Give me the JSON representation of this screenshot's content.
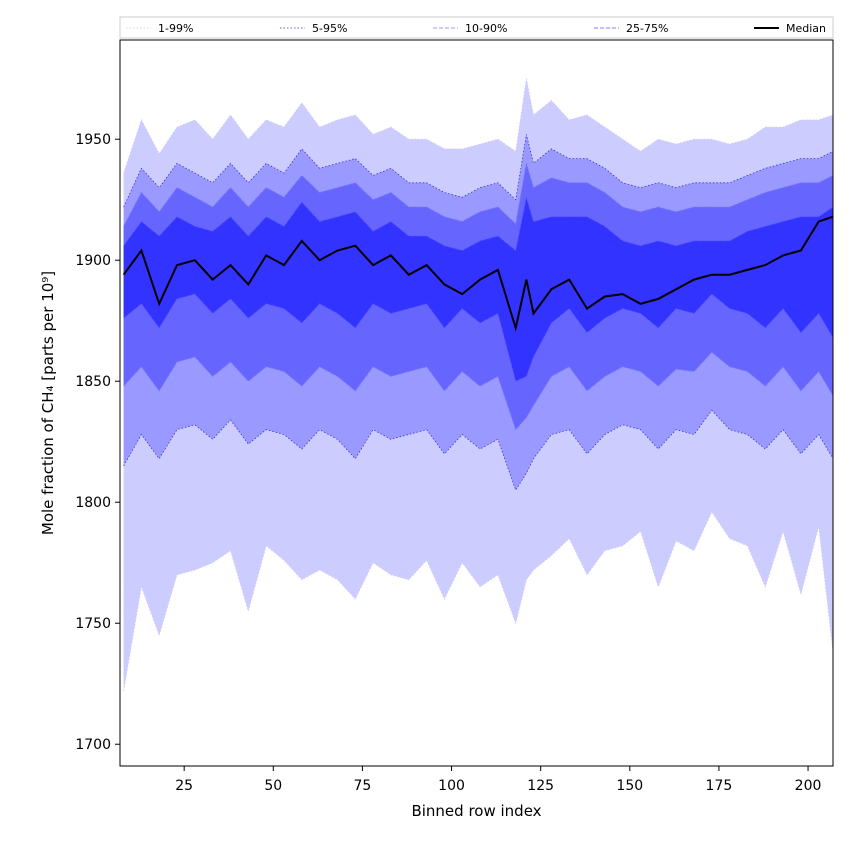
{
  "chart_data": {
    "type": "area",
    "title": "",
    "xlabel": "Binned row index",
    "ylabel": "Mole fraction of CH₄ [parts per 10⁹]",
    "xlim": [
      7,
      207
    ],
    "ylim": [
      1691,
      1991
    ],
    "x_ticks": [
      25,
      50,
      75,
      100,
      125,
      150,
      175,
      200
    ],
    "y_ticks": [
      1700,
      1750,
      1800,
      1850,
      1900,
      1950
    ],
    "grid": false,
    "legend_position": "top, spanning full width above plot",
    "x": [
      8,
      13,
      18,
      23,
      28,
      33,
      38,
      43,
      48,
      53,
      58,
      63,
      68,
      73,
      78,
      83,
      88,
      93,
      98,
      103,
      108,
      113,
      118,
      121,
      123,
      128,
      133,
      138,
      143,
      148,
      153,
      158,
      163,
      168,
      173,
      178,
      183,
      188,
      193,
      198,
      203,
      207
    ],
    "bands": [
      {
        "name": "1-99%",
        "fill": "#ccccff",
        "line_color": "#c8c8ff",
        "line_style": "dotted",
        "lower": [
          1722,
          1765,
          1745,
          1770,
          1772,
          1775,
          1780,
          1755,
          1782,
          1776,
          1768,
          1772,
          1768,
          1760,
          1775,
          1770,
          1768,
          1776,
          1760,
          1775,
          1765,
          1770,
          1750,
          1768,
          1772,
          1778,
          1785,
          1770,
          1780,
          1782,
          1788,
          1765,
          1784,
          1780,
          1796,
          1785,
          1782,
          1765,
          1788,
          1762,
          1790,
          1738
        ],
        "upper": [
          1936,
          1958,
          1944,
          1955,
          1958,
          1950,
          1960,
          1950,
          1958,
          1955,
          1965,
          1955,
          1958,
          1960,
          1952,
          1955,
          1950,
          1950,
          1946,
          1946,
          1948,
          1950,
          1945,
          1975,
          1960,
          1966,
          1958,
          1960,
          1955,
          1950,
          1945,
          1950,
          1948,
          1950,
          1950,
          1948,
          1950,
          1955,
          1955,
          1958,
          1958,
          1960
        ]
      },
      {
        "name": "5-95%",
        "fill": "#9999ff",
        "line_color": "#3333cc",
        "line_style": "dotted",
        "lower": [
          1815,
          1828,
          1818,
          1830,
          1832,
          1826,
          1834,
          1824,
          1830,
          1828,
          1822,
          1830,
          1826,
          1818,
          1830,
          1826,
          1828,
          1830,
          1820,
          1828,
          1822,
          1826,
          1805,
          1812,
          1818,
          1828,
          1830,
          1820,
          1828,
          1832,
          1830,
          1822,
          1830,
          1828,
          1838,
          1830,
          1828,
          1822,
          1830,
          1820,
          1828,
          1818
        ],
        "upper": [
          1922,
          1938,
          1930,
          1940,
          1936,
          1932,
          1940,
          1932,
          1940,
          1936,
          1946,
          1938,
          1940,
          1942,
          1935,
          1938,
          1932,
          1932,
          1928,
          1926,
          1930,
          1932,
          1925,
          1952,
          1940,
          1946,
          1942,
          1942,
          1938,
          1932,
          1930,
          1932,
          1930,
          1932,
          1932,
          1932,
          1935,
          1938,
          1940,
          1942,
          1942,
          1945
        ]
      },
      {
        "name": "10-90%",
        "fill": "#6666ff",
        "line_color": "#7777ff",
        "line_style": "dashed",
        "lower": [
          1848,
          1856,
          1846,
          1858,
          1860,
          1852,
          1858,
          1850,
          1856,
          1854,
          1848,
          1856,
          1852,
          1846,
          1856,
          1852,
          1854,
          1856,
          1846,
          1854,
          1848,
          1852,
          1830,
          1835,
          1840,
          1852,
          1856,
          1846,
          1852,
          1856,
          1854,
          1848,
          1855,
          1854,
          1862,
          1856,
          1854,
          1848,
          1856,
          1846,
          1854,
          1844
        ],
        "upper": [
          1914,
          1928,
          1920,
          1930,
          1926,
          1922,
          1930,
          1922,
          1930,
          1926,
          1935,
          1928,
          1930,
          1932,
          1925,
          1928,
          1922,
          1922,
          1918,
          1916,
          1920,
          1922,
          1915,
          1940,
          1930,
          1934,
          1932,
          1932,
          1928,
          1922,
          1920,
          1922,
          1920,
          1922,
          1922,
          1922,
          1925,
          1928,
          1930,
          1932,
          1932,
          1935
        ]
      },
      {
        "name": "25-75%",
        "fill": "#3333ff",
        "line_color": "#5555ff",
        "line_style": "dashed",
        "lower": [
          1876,
          1882,
          1872,
          1884,
          1886,
          1878,
          1884,
          1876,
          1882,
          1880,
          1874,
          1882,
          1878,
          1872,
          1882,
          1878,
          1880,
          1882,
          1872,
          1880,
          1874,
          1878,
          1850,
          1852,
          1860,
          1874,
          1880,
          1870,
          1876,
          1880,
          1878,
          1872,
          1880,
          1878,
          1886,
          1880,
          1878,
          1872,
          1880,
          1870,
          1878,
          1868
        ],
        "upper": [
          1906,
          1916,
          1910,
          1918,
          1914,
          1912,
          1918,
          1910,
          1918,
          1914,
          1924,
          1916,
          1918,
          1920,
          1912,
          1916,
          1910,
          1910,
          1906,
          1904,
          1908,
          1910,
          1904,
          1926,
          1916,
          1918,
          1918,
          1918,
          1914,
          1908,
          1906,
          1908,
          1906,
          1908,
          1908,
          1908,
          1912,
          1914,
          1916,
          1918,
          1918,
          1922
        ]
      }
    ],
    "series": [
      {
        "name": "Median",
        "color": "#000000",
        "values": [
          1894,
          1904,
          1882,
          1898,
          1900,
          1892,
          1898,
          1890,
          1902,
          1898,
          1908,
          1900,
          1904,
          1906,
          1898,
          1902,
          1894,
          1898,
          1890,
          1886,
          1892,
          1896,
          1872,
          1892,
          1878,
          1888,
          1892,
          1880,
          1885,
          1886,
          1882,
          1884,
          1888,
          1892,
          1894,
          1894,
          1896,
          1898,
          1902,
          1904,
          1916,
          1918
        ]
      }
    ]
  }
}
